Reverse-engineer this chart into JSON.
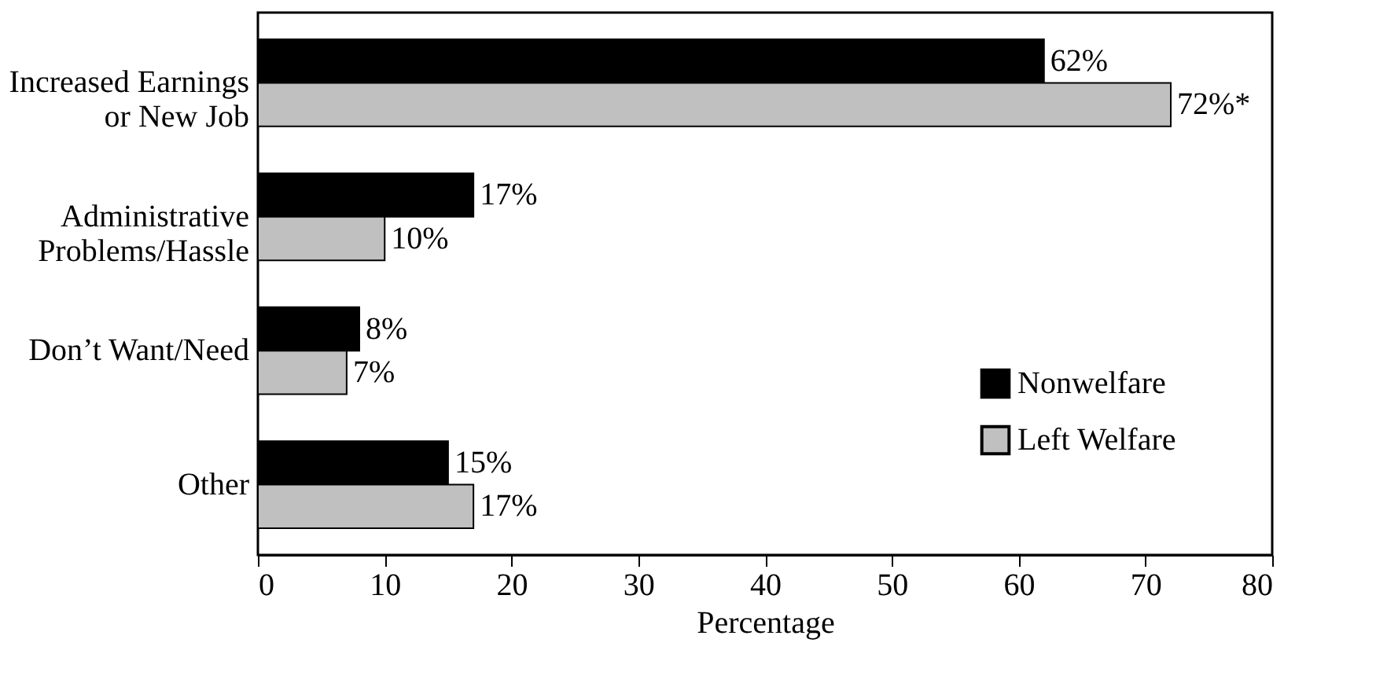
{
  "chart_data": {
    "type": "bar",
    "orientation": "horizontal",
    "categories": [
      "Increased Earnings\nor New Job",
      "Administrative\nProblems/Hassle",
      "Don’t Want/Need",
      "Other"
    ],
    "series": [
      {
        "name": "Nonwelfare",
        "color": "#000000",
        "values": [
          62,
          17,
          8,
          15
        ],
        "value_labels": [
          "62%",
          "17%",
          "8%",
          "15%"
        ]
      },
      {
        "name": "Left Welfare",
        "color": "#c0c0c0",
        "values": [
          72,
          10,
          7,
          17
        ],
        "value_labels": [
          "72%*",
          "10%",
          "7%",
          "17%"
        ]
      }
    ],
    "xlim": [
      0,
      80
    ],
    "xticks": [
      0,
      10,
      20,
      30,
      40,
      50,
      60,
      70,
      80
    ],
    "xlabel": "Percentage",
    "grid": false,
    "legend": "bottom right"
  }
}
